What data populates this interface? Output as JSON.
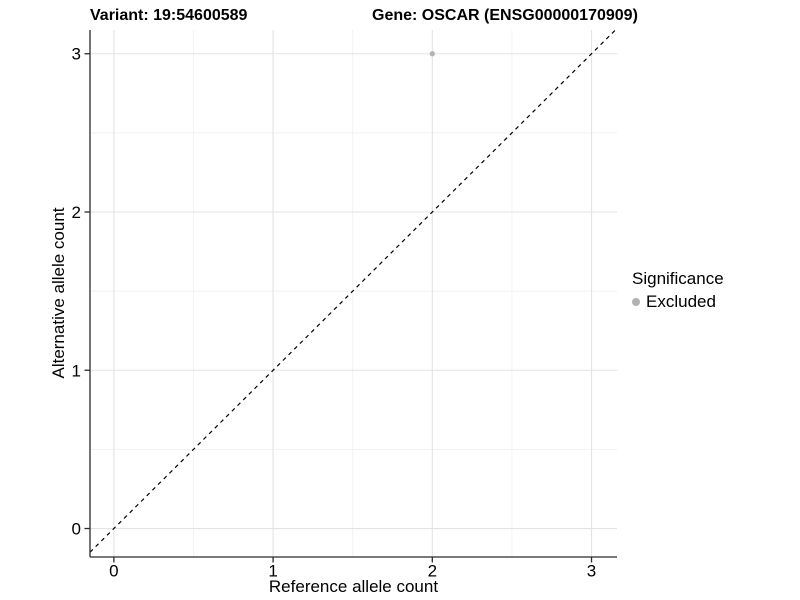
{
  "chart_data": {
    "type": "scatter",
    "title_left": "Variant: 19:54600589",
    "title_right": "Gene: OSCAR (ENSG00000170909)",
    "xlabel": "Reference allele count",
    "ylabel": "Alternative allele count",
    "xlim": [
      -0.15,
      3.16
    ],
    "ylim": [
      -0.18,
      3.15
    ],
    "xticks": [
      0,
      1,
      2,
      3
    ],
    "yticks": [
      0,
      1,
      2,
      3
    ],
    "minor_xticks": [
      0.5,
      1.5,
      2.5
    ],
    "minor_yticks": [
      0.5,
      1.5,
      2.5
    ],
    "grid": "major+minor",
    "legend_position": "right",
    "legend": {
      "title": "Significance",
      "items": [
        {
          "label": "Excluded",
          "color": "#b2b2b2"
        }
      ]
    },
    "series": [
      {
        "name": "Excluded",
        "color": "#b2b2b2",
        "points": [
          {
            "x": 2,
            "y": 3
          }
        ]
      }
    ],
    "reference_line": {
      "equation": "y = x",
      "style": "dashed",
      "color": "#000000"
    },
    "colors": {
      "background": "#ffffff",
      "grid_major": "#e3e3e3",
      "grid_minor": "#f1f1f1",
      "axis_line": "#2b2b2b",
      "tick": "#2b2b2b",
      "text": "#000000",
      "point": "#b2b2b2"
    }
  }
}
